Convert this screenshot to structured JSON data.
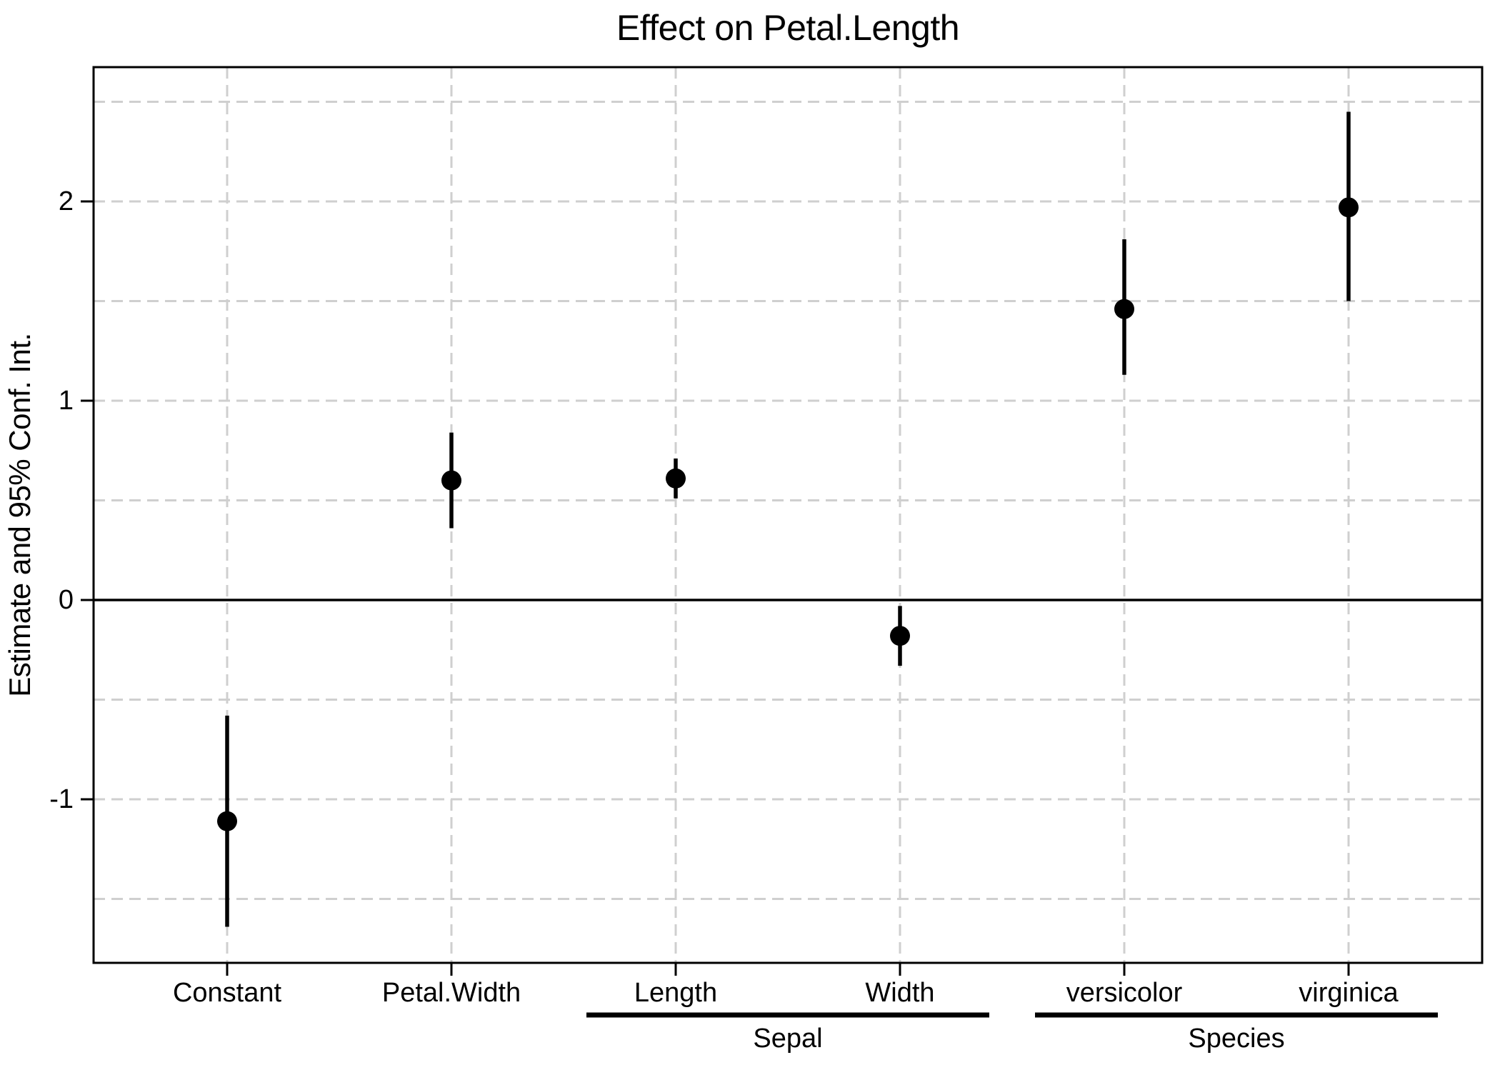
{
  "chart_data": {
    "type": "scatter",
    "subtype": "coefficient_dot_whisker",
    "title": "Effect on Petal.Length",
    "xlabel": "",
    "ylabel": "Estimate and 95% Conf. Int.",
    "categories": [
      "Constant",
      "Petal.Width",
      "Length",
      "Width",
      "versicolor",
      "virginica"
    ],
    "points": [
      {
        "term": "Constant",
        "estimate": -1.11,
        "ci_low": -1.64,
        "ci_high": -0.58
      },
      {
        "term": "Petal.Width",
        "estimate": 0.6,
        "ci_low": 0.36,
        "ci_high": 0.84
      },
      {
        "term": "Length",
        "estimate": 0.61,
        "ci_low": 0.51,
        "ci_high": 0.71
      },
      {
        "term": "Width",
        "estimate": -0.18,
        "ci_low": -0.33,
        "ci_high": -0.03
      },
      {
        "term": "versicolor",
        "estimate": 1.46,
        "ci_low": 1.13,
        "ci_high": 1.81
      },
      {
        "term": "virginica",
        "estimate": 1.97,
        "ci_low": 1.5,
        "ci_high": 2.45
      }
    ],
    "group_brackets": [
      {
        "label": "Sepal",
        "from": "Length",
        "to": "Width"
      },
      {
        "label": "Species",
        "from": "versicolor",
        "to": "virginica"
      }
    ],
    "yticks": [
      2,
      1,
      0,
      -1
    ],
    "ylim": [
      -1.82,
      2.67
    ],
    "grid": {
      "show": true,
      "step": 0.5,
      "style": "dashed",
      "exclude_zero": true
    },
    "zero_line": {
      "show": true,
      "value": 0
    },
    "legend_position": "none",
    "colors": {
      "point": "#000000",
      "ci": "#000000",
      "grid": "#cfcfcf",
      "zero_line": "#000000",
      "border": "#000000",
      "tick": "#000000",
      "text": "#000000",
      "background": "#ffffff"
    }
  }
}
